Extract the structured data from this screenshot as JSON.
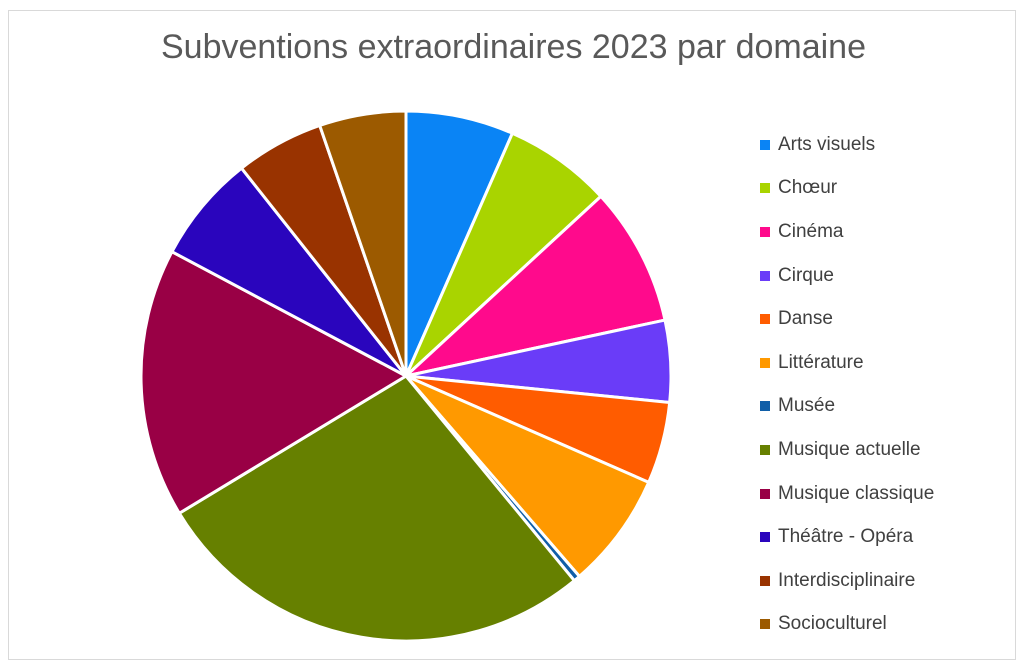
{
  "chart_data": {
    "type": "pie",
    "title": "Subventions extraordinaires 2023 par domaine",
    "legend_position": "right",
    "unit": "%",
    "slices": [
      {
        "label": "Arts visuels",
        "value": 6.6,
        "color": "#0a84f5"
      },
      {
        "label": "Chœur",
        "value": 6.6,
        "color": "#a9d400"
      },
      {
        "label": "Cinéma",
        "value": 8.5,
        "color": "#ff0a8c"
      },
      {
        "label": "Cirque",
        "value": 5.0,
        "color": "#6a3cf8"
      },
      {
        "label": "Danse",
        "value": 5.0,
        "color": "#ff5c00"
      },
      {
        "label": "Littérature",
        "value": 7.1,
        "color": "#ff9900"
      },
      {
        "label": "Musée",
        "value": 0.4,
        "color": "#105ea8"
      },
      {
        "label": "Musique actuelle",
        "value": 27.4,
        "color": "#668000"
      },
      {
        "label": "Musique classique",
        "value": 16.5,
        "color": "#990045"
      },
      {
        "label": "Théâtre - Opéra",
        "value": 6.6,
        "color": "#2a05bd"
      },
      {
        "label": "Interdisciplinaire",
        "value": 5.4,
        "color": "#993300"
      },
      {
        "label": "Socioculturel",
        "value": 5.3,
        "color": "#9c5a00"
      }
    ]
  }
}
